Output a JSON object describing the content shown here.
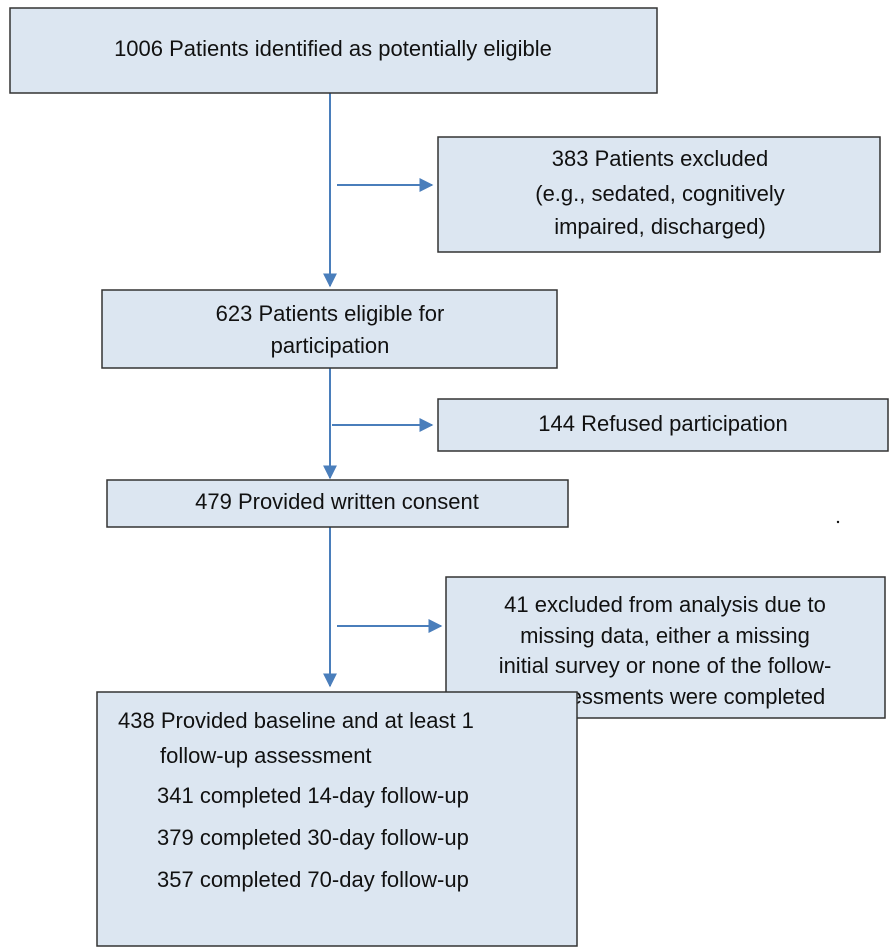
{
  "nodes": [
    {
      "lines": [
        "1006 Patients identified as potentially eligible"
      ]
    },
    {
      "lines": [
        "383 Patients excluded",
        "(e.g., sedated, cognitively",
        "impaired, discharged)"
      ]
    },
    {
      "lines": [
        "623 Patients eligible for",
        "participation"
      ]
    },
    {
      "lines": [
        "144 Refused participation"
      ]
    },
    {
      "lines": [
        "479 Provided written consent"
      ]
    },
    {
      "lines": [
        "41 excluded from analysis due to",
        "missing data, either a missing",
        "initial survey or none of the follow-",
        "up assessments were completed"
      ]
    },
    {
      "lines": [
        "438 Provided baseline and at least 1",
        "follow-up assessment",
        "341 completed 14-day follow-up",
        "379 completed 30-day follow-up",
        "357 completed 70-day follow-up"
      ]
    }
  ]
}
